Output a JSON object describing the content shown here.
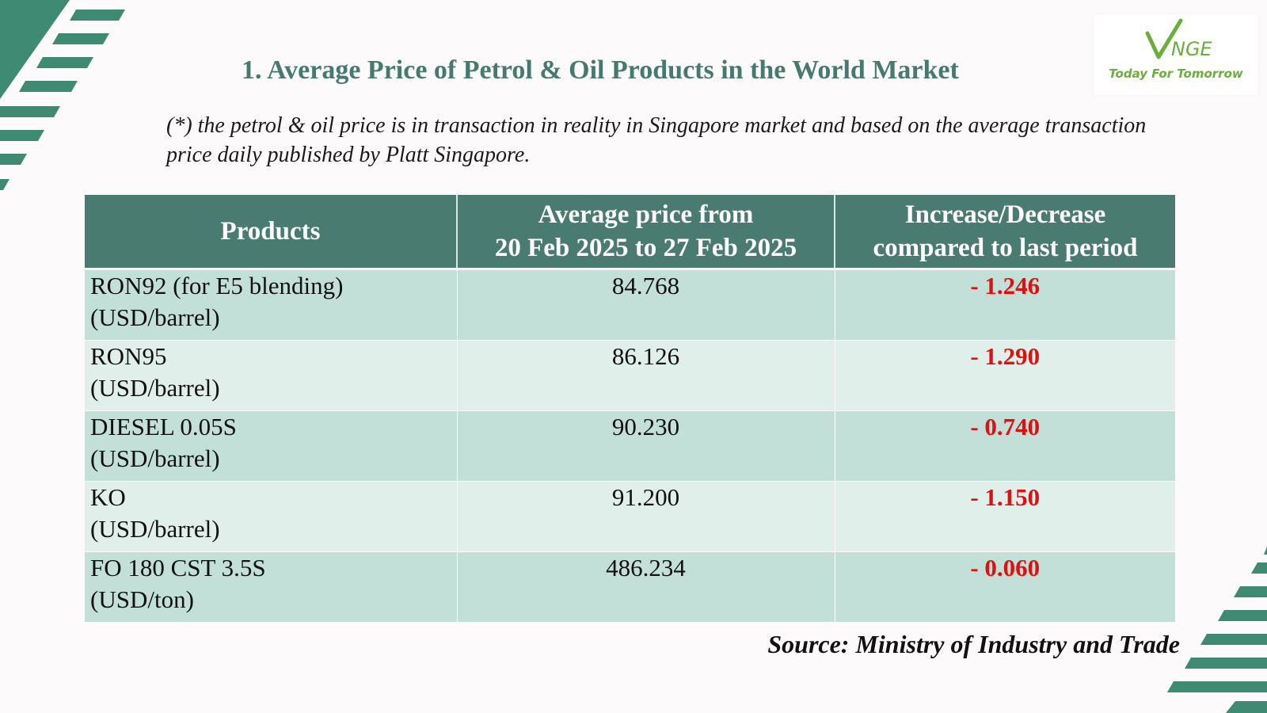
{
  "colors": {
    "accent": "#4a7b71",
    "title": "#467a6f",
    "row_dark": "#c3e0d8",
    "row_light": "#e0efea",
    "negative": "#e01010",
    "logo_green": "#6aae3c"
  },
  "logo": {
    "wordmark": "VNGE",
    "tagline": "Today For Tomorrow"
  },
  "title": "1. Average Price of Petrol & Oil Products in the World Market",
  "note": "(*) the petrol & oil price is in transaction in reality in Singapore market and based on the average transaction price daily published by Platt Singapore.",
  "table": {
    "headers": {
      "products": "Products",
      "avg_line1": "Average price from",
      "avg_line2": "20 Feb 2025 to 27 Feb 2025",
      "chg_line1": "Increase/Decrease",
      "chg_line2": "compared to last period"
    },
    "rows": [
      {
        "name": "RON92 (for E5 blending)",
        "unit": "(USD/barrel)",
        "price": "84.768",
        "change": "- 1.246"
      },
      {
        "name": "RON95",
        "unit": "(USD/barrel)",
        "price": "86.126",
        "change": "- 1.290"
      },
      {
        "name": "DIESEL 0.05S",
        "unit": "(USD/barrel)",
        "price": "90.230",
        "change": "- 0.740"
      },
      {
        "name": "KO",
        "unit": "(USD/barrel)",
        "price": "91.200",
        "change": "- 1.150"
      },
      {
        "name": "FO 180 CST 3.5S",
        "unit": "(USD/ton)",
        "price": "486.234",
        "change": "- 0.060"
      }
    ]
  },
  "source": "Source: Ministry of Industry and Trade"
}
